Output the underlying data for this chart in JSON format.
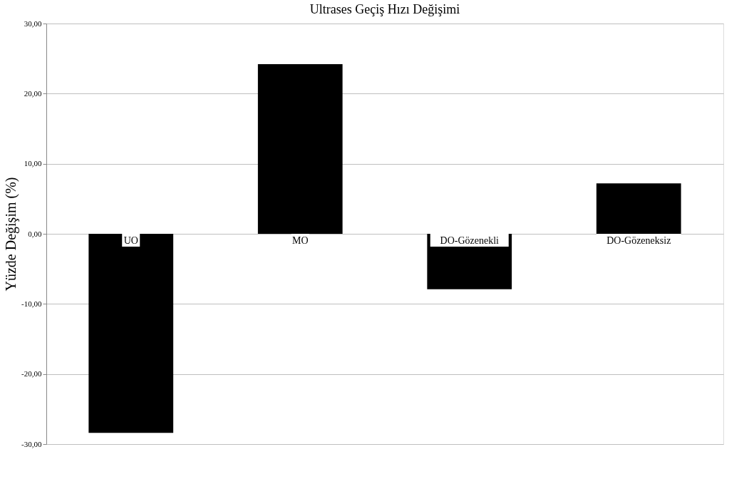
{
  "chart_data": {
    "type": "bar",
    "title": "Ultrases  Geçiş Hızı Değişimi",
    "ylabel": "Yüzde Değişim (%)",
    "categories": [
      "UO",
      "MO",
      "DO-Gözenekli",
      "DO-Gözeneksiz"
    ],
    "values": [
      -28.4,
      24.2,
      -7.9,
      7.2
    ],
    "color": "#000000",
    "ylim": [
      -30,
      30
    ],
    "yticks": [
      {
        "value": -30,
        "label": "-30,00"
      },
      {
        "value": -20,
        "label": "-20,00"
      },
      {
        "value": -10,
        "label": "-10,00"
      },
      {
        "value": 0,
        "label": "0,00"
      },
      {
        "value": 10,
        "label": "10,00"
      },
      {
        "value": 20,
        "label": "20,00"
      },
      {
        "value": 30,
        "label": "30,00"
      }
    ],
    "grid": "y"
  }
}
